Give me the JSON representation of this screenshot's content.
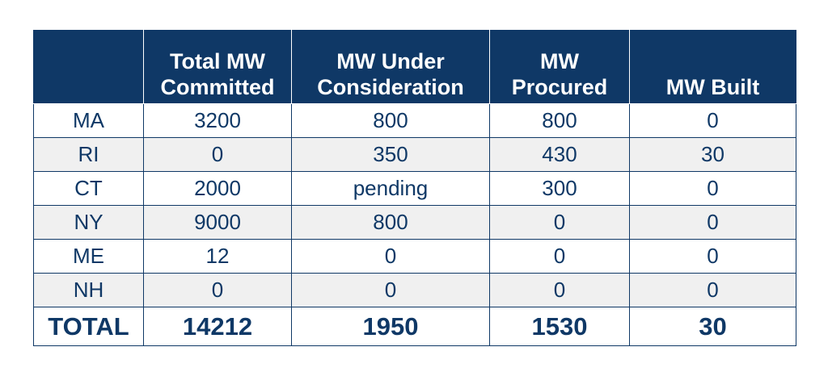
{
  "table": {
    "headers": [
      "",
      "Total MW\nCommitted",
      "MW Under\nConsideration",
      "MW\nProcured",
      "MW Built"
    ],
    "rows": [
      [
        "MA",
        "3200",
        "800",
        "800",
        "0"
      ],
      [
        "RI",
        "0",
        "350",
        "430",
        "30"
      ],
      [
        "CT",
        "2000",
        "pending",
        "300",
        "0"
      ],
      [
        "NY",
        "9000",
        "800",
        "0",
        "0"
      ],
      [
        "ME",
        "12",
        "0",
        "0",
        "0"
      ],
      [
        "NH",
        "0",
        "0",
        "0",
        "0"
      ]
    ],
    "total": [
      "TOTAL",
      "14212",
      "1950",
      "1530",
      "30"
    ]
  },
  "colors": {
    "header_bg": "#0f3866",
    "text": "#0f3866",
    "stripe": "#f0f0f0"
  }
}
